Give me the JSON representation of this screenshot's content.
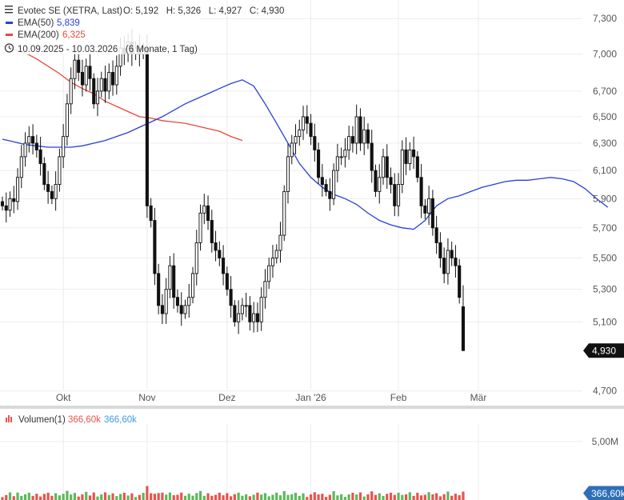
{
  "header": {
    "title": "Evotec SE (XETRA, Last)",
    "ohlc": "O: 5,192   H: 5,326   L: 4,927   C: 4,930",
    "ema50_label": "EMA(50)",
    "ema50_value": "5,839",
    "ema200_label": "EMA(200)",
    "ema200_value": "6,325",
    "range_text": "10.09.2025 - 10.03.2026   (6 Monate, 1 Tag)"
  },
  "volume_header": {
    "label": "Volumen(1)",
    "value_red": "366,60k",
    "value_blue": "366,60k"
  },
  "colors": {
    "ema50": "#2b3fd6",
    "ema200": "#e8473d",
    "vol_up": "#5db85b",
    "vol_down": "#e8534e",
    "candle": "#111111"
  },
  "chart_data": [
    {
      "type": "candlestick",
      "title": "Evotec SE (XETRA, Last)",
      "x_tick_labels": [
        "Okt",
        "Nov",
        "Dez",
        "Jan '26",
        "Feb",
        "Mär"
      ],
      "x_tick_index": [
        16,
        38,
        59,
        81,
        104,
        125
      ],
      "y_tick_labels": [
        "7,300",
        "7,000",
        "6,700",
        "6,500",
        "6,300",
        "6,100",
        "5,900",
        "5,700",
        "5,500",
        "5,300",
        "5,100",
        "4,700"
      ],
      "y_ticks": [
        7.3,
        7.0,
        6.7,
        6.5,
        6.3,
        6.1,
        5.9,
        5.7,
        5.5,
        5.3,
        5.1,
        4.7
      ],
      "ylim": [
        4.65,
        7.42
      ],
      "y_scale": "log",
      "last_price_label": "4,930",
      "close": [
        5.85,
        5.82,
        5.9,
        5.88,
        6.05,
        6.2,
        6.3,
        6.35,
        6.3,
        6.25,
        6.15,
        6.0,
        5.95,
        5.9,
        6.0,
        6.2,
        6.35,
        6.6,
        6.8,
        6.95,
        6.85,
        6.75,
        6.9,
        6.8,
        6.6,
        6.7,
        6.8,
        6.7,
        6.85,
        6.75,
        6.9,
        7.05,
        7.0,
        7.1,
        7.0,
        7.05,
        7.0,
        7.05,
        5.85,
        5.75,
        5.4,
        5.2,
        5.15,
        5.3,
        5.45,
        5.25,
        5.2,
        5.15,
        5.2,
        5.25,
        5.4,
        5.6,
        5.8,
        5.85,
        5.75,
        5.6,
        5.55,
        5.5,
        5.4,
        5.3,
        5.2,
        5.1,
        5.15,
        5.2,
        5.2,
        5.1,
        5.15,
        5.1,
        5.25,
        5.35,
        5.45,
        5.5,
        5.55,
        5.65,
        5.95,
        6.2,
        6.3,
        6.35,
        6.4,
        6.5,
        6.45,
        6.35,
        6.25,
        6.05,
        6.0,
        5.95,
        5.9,
        6.1,
        6.2,
        6.2,
        6.25,
        6.35,
        6.3,
        6.5,
        6.3,
        6.4,
        6.3,
        6.1,
        5.95,
        6.05,
        6.2,
        6.05,
        6.0,
        5.85,
        6.0,
        6.25,
        6.15,
        6.25,
        6.2,
        6.05,
        5.85,
        5.8,
        5.9,
        5.7,
        5.6,
        5.5,
        5.4,
        5.55,
        5.5,
        5.45,
        5.25,
        4.93
      ],
      "ema50": [
        6.33,
        6.31,
        6.29,
        6.28,
        6.27,
        6.27,
        6.27,
        6.28,
        6.3,
        6.32,
        6.35,
        6.38,
        6.42,
        6.46,
        6.5,
        6.55,
        6.6,
        6.64,
        6.68,
        6.72,
        6.76,
        6.79,
        6.74,
        6.6,
        6.45,
        6.3,
        6.15,
        6.05,
        5.98,
        5.93,
        5.9,
        5.86,
        5.8,
        5.75,
        5.72,
        5.7,
        5.69,
        5.75,
        5.85,
        5.9,
        5.92,
        5.95,
        5.98,
        6.0,
        6.02,
        6.03,
        6.03,
        6.04,
        6.05,
        6.04,
        6.02,
        5.97,
        5.9,
        5.84
      ],
      "ema200": [
        7.07,
        7.04,
        7.01,
        6.96,
        6.9,
        6.84,
        6.77,
        6.72,
        6.68,
        6.62,
        6.58,
        6.54,
        6.5,
        6.49,
        6.47,
        6.46,
        6.45,
        6.43,
        6.41,
        6.39,
        6.35,
        6.32
      ],
      "volume_ylim": [
        0,
        6500000
      ],
      "volume_tick_labels": [
        "5,00M"
      ],
      "volume_ticks": [
        5000000
      ],
      "volume_last_label": "366,60k"
    }
  ]
}
